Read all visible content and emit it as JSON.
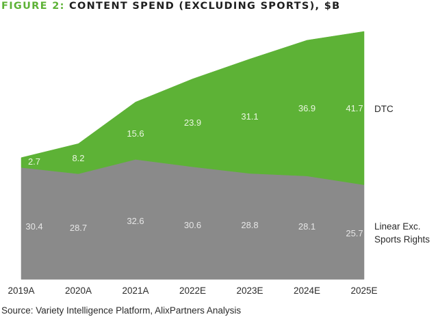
{
  "chart_data": {
    "type": "area",
    "stacked": true,
    "title_prefix": "FIGURE 2:",
    "title": "CONTENT SPEND (EXCLUDING SPORTS), $B",
    "xlabel": "",
    "ylabel": "",
    "categories": [
      "2019A",
      "2020A",
      "2021A",
      "2022E",
      "2023E",
      "2024E",
      "2025E"
    ],
    "series": [
      {
        "name": "Linear Exc. Sports Rights",
        "name_lines": [
          "Linear Exc.",
          "Sports Rights"
        ],
        "values": [
          30.4,
          28.7,
          32.6,
          30.6,
          28.8,
          28.1,
          25.7
        ],
        "labels": [
          "30.4",
          "28.7",
          "32.6",
          "30.6",
          "28.8",
          "28.1",
          "25.7"
        ],
        "color": "#8a8a8a"
      },
      {
        "name": "DTC",
        "name_lines": [
          "DTC"
        ],
        "values": [
          2.7,
          8.2,
          15.6,
          23.9,
          31.1,
          36.9,
          41.7
        ],
        "labels": [
          "2.7",
          "8.2",
          "15.6",
          "23.9",
          "31.1",
          "36.9",
          "41.7"
        ],
        "color": "#5db236"
      }
    ],
    "ylim": [
      0,
      67.4
    ],
    "grid": false,
    "legend": "right (inline series labels)",
    "source": "Source: Variety Intelligence Platform, AlixPartners Analysis"
  }
}
